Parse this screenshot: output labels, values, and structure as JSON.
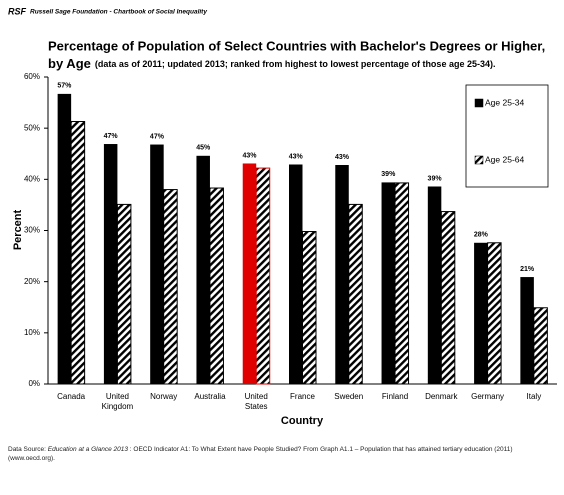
{
  "header": {
    "org_short": "RSF",
    "text": "Russell Sage Foundation - Chartbook of Social Inequality"
  },
  "chart_data": {
    "type": "bar",
    "title": "Percentage of Population of Select Countries with Bachelor's Degrees or Higher,",
    "title_line2": "by Age",
    "subtitle": "(data as of 2011; updated 2013; ranked from highest to lowest percentage of those age 25-34).",
    "x_label": "Country",
    "y_label": "Percent",
    "categories": [
      "Canada",
      "United Kingdom",
      "Norway",
      "Australia",
      "United States",
      "France",
      "Sweden",
      "Finland",
      "Denmark",
      "Germany",
      "Italy"
    ],
    "series": [
      {
        "name": "Age 25-34",
        "color": "#000000",
        "colors": [
          "#000000",
          "#000000",
          "#000000",
          "#000000",
          "#e00000",
          "#000000",
          "#000000",
          "#000000",
          "#000000",
          "#000000",
          "#000000"
        ],
        "values": [
          56.7,
          46.9,
          46.8,
          44.6,
          43.1,
          42.9,
          42.8,
          39.4,
          38.6,
          27.6,
          20.9
        ],
        "value_labels": [
          "57%",
          "47%",
          "47%",
          "45%",
          "43%",
          "43%",
          "43%",
          "39%",
          "39%",
          "28%",
          "21%"
        ]
      },
      {
        "name": "Age 25-64",
        "color": "#000000",
        "pattern": "hatch",
        "colors": [
          "#000000",
          "#000000",
          "#000000",
          "#000000",
          "#e00000",
          "#000000",
          "#000000",
          "#000000",
          "#000000",
          "#000000",
          "#000000"
        ],
        "values": [
          51.3,
          35.1,
          38.0,
          38.3,
          42.2,
          29.8,
          35.1,
          39.3,
          33.7,
          27.6,
          14.9
        ]
      }
    ],
    "ylim": [
      0,
      60
    ],
    "yticks": [
      {
        "value": 0,
        "label": "0%"
      },
      {
        "value": 10,
        "label": "10%"
      },
      {
        "value": 20,
        "label": "20%"
      },
      {
        "value": 30,
        "label": "30%"
      },
      {
        "value": 40,
        "label": "40%"
      },
      {
        "value": 50,
        "label": "50%"
      },
      {
        "value": 60,
        "label": "60%"
      }
    ],
    "grid": false,
    "legend": "upper right"
  },
  "source": {
    "prefix": "Data Source: ",
    "title": "Education at a Glance 2013",
    "text": " :  OECD Indicator A1: To What Extent have People Studied?  From Graph A1.1 – Population that has attained tertiary education (2011) (www.oecd.org)."
  }
}
